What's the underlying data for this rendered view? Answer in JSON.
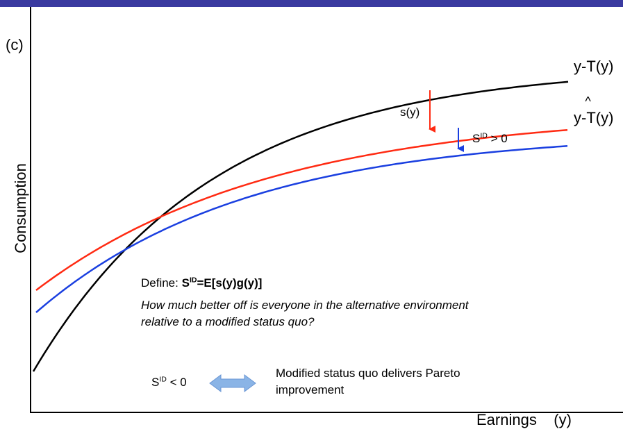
{
  "panel_label": "(c)",
  "axes": {
    "x_label_main": "Earnings",
    "x_label_var": "(y)",
    "y_label": "Consumption"
  },
  "curves": {
    "actual": {
      "label": "y-T(y)",
      "color": "#000000"
    },
    "alternative": {
      "label_prefix": "y-",
      "label_letter": "T",
      "label_hat": "^",
      "label_suffix": "(y)",
      "color": "#ff2a12"
    },
    "modified": {
      "color": "#1a3fe0"
    }
  },
  "arrows": {
    "s_label": "s(y)",
    "sid_pos": {
      "base": "S",
      "sup": "ID",
      "rest": " > 0"
    }
  },
  "definition": {
    "prefix": "Define: ",
    "base": "S",
    "sup": "ID",
    "rest": "=E[s(y)g(y)]",
    "question": "How much better off is everyone in the alternative environment relative to a modified status quo?"
  },
  "equivalence": {
    "lhs_base": "S",
    "lhs_sup": "ID",
    "lhs_rest": " < 0",
    "arrow_color": "#8ab4e6",
    "rhs": "Modified status quo delivers Pareto improvement"
  }
}
